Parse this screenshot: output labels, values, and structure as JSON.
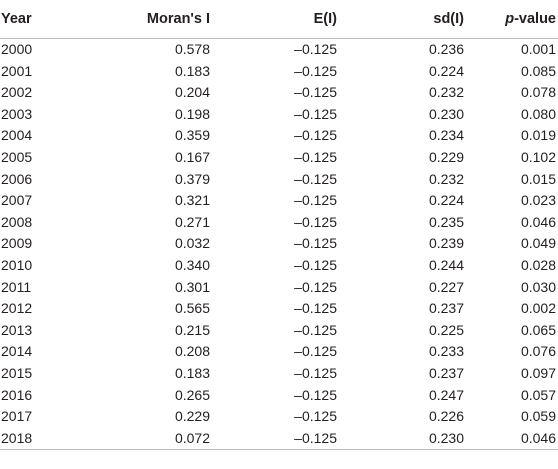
{
  "table": {
    "headers": {
      "year": "Year",
      "morans_i": "Moran's I",
      "expected": "E(I)",
      "sd": "sd(I)",
      "p_prefix": "p",
      "p_suffix": "-value"
    },
    "rows": [
      {
        "year": "2000",
        "morans_i": "0.578",
        "expected": "–0.125",
        "sd": "0.236",
        "p": "0.001"
      },
      {
        "year": "2001",
        "morans_i": "0.183",
        "expected": "–0.125",
        "sd": "0.224",
        "p": "0.085"
      },
      {
        "year": "2002",
        "morans_i": "0.204",
        "expected": "–0.125",
        "sd": "0.232",
        "p": "0.078"
      },
      {
        "year": "2003",
        "morans_i": "0.198",
        "expected": "–0.125",
        "sd": "0.230",
        "p": "0.080"
      },
      {
        "year": "2004",
        "morans_i": "0.359",
        "expected": "–0.125",
        "sd": "0.234",
        "p": "0.019"
      },
      {
        "year": "2005",
        "morans_i": "0.167",
        "expected": "–0.125",
        "sd": "0.229",
        "p": "0.102"
      },
      {
        "year": "2006",
        "morans_i": "0.379",
        "expected": "–0.125",
        "sd": "0.232",
        "p": "0.015"
      },
      {
        "year": "2007",
        "morans_i": "0.321",
        "expected": "–0.125",
        "sd": "0.224",
        "p": "0.023"
      },
      {
        "year": "2008",
        "morans_i": "0.271",
        "expected": "–0.125",
        "sd": "0.235",
        "p": "0.046"
      },
      {
        "year": "2009",
        "morans_i": "0.032",
        "expected": "–0.125",
        "sd": "0.239",
        "p": "0.049"
      },
      {
        "year": "2010",
        "morans_i": "0.340",
        "expected": "–0.125",
        "sd": "0.244",
        "p": "0.028"
      },
      {
        "year": "2011",
        "morans_i": "0.301",
        "expected": "–0.125",
        "sd": "0.227",
        "p": "0.030"
      },
      {
        "year": "2012",
        "morans_i": "0.565",
        "expected": "–0.125",
        "sd": "0.237",
        "p": "0.002"
      },
      {
        "year": "2013",
        "morans_i": "0.215",
        "expected": "–0.125",
        "sd": "0.225",
        "p": "0.065"
      },
      {
        "year": "2014",
        "morans_i": "0.208",
        "expected": "–0.125",
        "sd": "0.233",
        "p": "0.076"
      },
      {
        "year": "2015",
        "morans_i": "0.183",
        "expected": "–0.125",
        "sd": "0.237",
        "p": "0.097"
      },
      {
        "year": "2016",
        "morans_i": "0.265",
        "expected": "–0.125",
        "sd": "0.247",
        "p": "0.057"
      },
      {
        "year": "2017",
        "morans_i": "0.229",
        "expected": "–0.125",
        "sd": "0.226",
        "p": "0.059"
      },
      {
        "year": "2018",
        "morans_i": "0.072",
        "expected": "–0.125",
        "sd": "0.230",
        "p": "0.046"
      }
    ]
  }
}
